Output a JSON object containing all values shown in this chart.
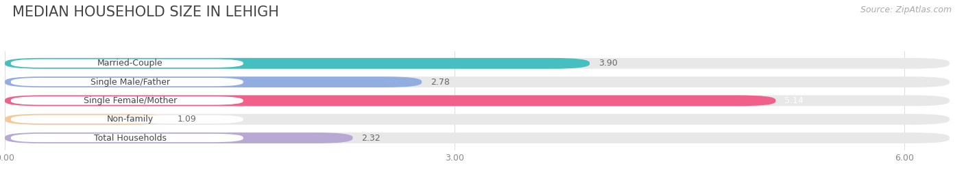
{
  "title": "MEDIAN HOUSEHOLD SIZE IN LEHIGH",
  "source": "Source: ZipAtlas.com",
  "categories": [
    "Married-Couple",
    "Single Male/Father",
    "Single Female/Mother",
    "Non-family",
    "Total Households"
  ],
  "values": [
    3.9,
    2.78,
    5.14,
    1.09,
    2.32
  ],
  "bar_colors": [
    "#45bfbf",
    "#92aee0",
    "#f0608a",
    "#f5c896",
    "#b8a8d4"
  ],
  "bar_bg_color": "#e8e8e8",
  "xlim": [
    0,
    6.3
  ],
  "xticks": [
    0.0,
    3.0,
    6.0
  ],
  "xtick_labels": [
    "0.00",
    "3.00",
    "6.00"
  ],
  "background_color": "#ffffff",
  "title_fontsize": 15,
  "source_fontsize": 9,
  "label_fontsize": 9,
  "value_fontsize": 9
}
